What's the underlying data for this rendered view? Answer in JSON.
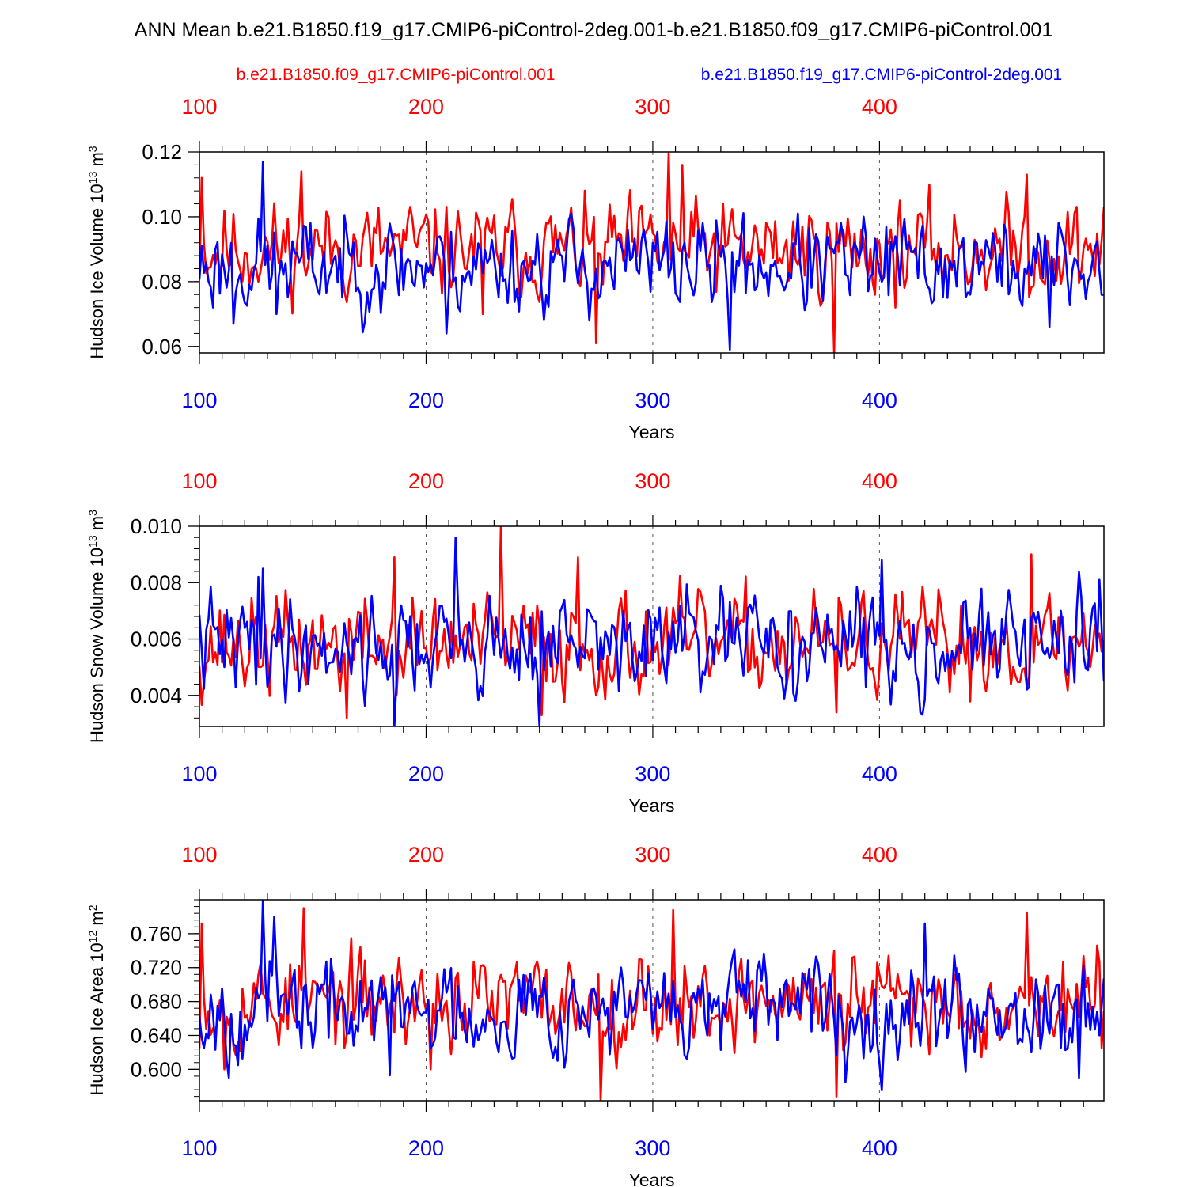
{
  "title": "ANN Mean b.e21.B1850.f19_g17.CMIP6-piControl-2deg.001-b.e21.B1850.f09_g17.CMIP6-piControl.001",
  "legend": {
    "red_label": "b.e21.B1850.f09_g17.CMIP6-piControl.001",
    "blue_label": "b.e21.B1850.f19_g17.CMIP6-piControl-2deg.001"
  },
  "colors": {
    "red": "#ff0000",
    "blue": "#0000ff",
    "axis": "#000000",
    "grid": "#555555"
  },
  "chart_data": [
    {
      "type": "line",
      "id": "ice_volume",
      "ylabel": "Hudson Ice Volume",
      "unit_base": "10",
      "unit_exp": "13",
      "unit_m": "m",
      "unit_m_exp": "3",
      "xlabel": "Years",
      "xlim": [
        100,
        499
      ],
      "ylim": [
        0.058,
        0.12
      ],
      "yticks": [
        0.06,
        0.08,
        0.1,
        0.12
      ],
      "ytick_labels": [
        "0.06",
        "0.08",
        "0.10",
        "0.12"
      ],
      "xticks": [
        100,
        200,
        300,
        400
      ],
      "xtick_labels": [
        "100",
        "200",
        "300",
        "400"
      ],
      "grid_x": [
        200,
        300,
        400
      ],
      "series": [
        {
          "name": "b.e21.B1850.f09_g17.CMIP6-piControl.001",
          "color": "red",
          "mean": 0.09,
          "amp": 0.009,
          "seed": 11,
          "peaks": [
            [
              101,
              0.112
            ],
            [
              145,
              0.114
            ],
            [
              307,
              0.12
            ],
            [
              313,
              0.116
            ],
            [
              275,
              0.061
            ],
            [
              380,
              0.058
            ],
            [
              465,
              0.113
            ],
            [
              225,
              0.07
            ]
          ]
        },
        {
          "name": "b.e21.B1850.f19_g17.CMIP6-piControl-2deg.001",
          "color": "blue",
          "mean": 0.085,
          "amp": 0.009,
          "seed": 23,
          "peaks": [
            [
              128,
              0.117
            ],
            [
              134,
              0.07
            ],
            [
              115,
              0.067
            ],
            [
              334,
              0.059
            ],
            [
              209,
              0.064
            ],
            [
              475,
              0.066
            ]
          ]
        }
      ]
    },
    {
      "type": "line",
      "id": "snow_volume",
      "ylabel": "Hudson Snow Volume",
      "unit_base": "10",
      "unit_exp": "13",
      "unit_m": "m",
      "unit_m_exp": "3",
      "xlabel": "Years",
      "xlim": [
        100,
        499
      ],
      "ylim": [
        0.0029,
        0.01
      ],
      "yticks": [
        0.004,
        0.006,
        0.008,
        0.01
      ],
      "ytick_labels": [
        "0.004",
        "0.006",
        "0.008",
        "0.010"
      ],
      "xticks": [
        100,
        200,
        300,
        400
      ],
      "xtick_labels": [
        "100",
        "200",
        "300",
        "400"
      ],
      "grid_x": [
        200,
        300,
        400
      ],
      "series": [
        {
          "name": "b.e21.B1850.f09_g17.CMIP6-piControl.001",
          "color": "red",
          "mean": 0.0058,
          "amp": 0.0011,
          "seed": 37,
          "peaks": [
            [
              233,
              0.01
            ],
            [
              186,
              0.0089
            ],
            [
              267,
              0.0089
            ],
            [
              467,
              0.009
            ],
            [
              165,
              0.0032
            ],
            [
              251,
              0.0033
            ],
            [
              381,
              0.0034
            ]
          ]
        },
        {
          "name": "b.e21.B1850.f19_g17.CMIP6-piControl-2deg.001",
          "color": "blue",
          "mean": 0.0058,
          "amp": 0.0011,
          "seed": 41,
          "peaks": [
            [
              213,
              0.0096
            ],
            [
              126,
              0.0082
            ],
            [
              128,
              0.0085
            ],
            [
              186,
              0.0029
            ],
            [
              250,
              0.0029
            ],
            [
              401,
              0.0088
            ],
            [
              497,
              0.0081
            ]
          ]
        }
      ]
    },
    {
      "type": "line",
      "id": "ice_area",
      "ylabel": "Hudson Ice Area",
      "unit_base": "10",
      "unit_exp": "12",
      "unit_m": "m",
      "unit_m_exp": "2",
      "xlabel": "Years",
      "xlim": [
        100,
        499
      ],
      "ylim": [
        0.563,
        0.8
      ],
      "yticks": [
        0.6,
        0.64,
        0.68,
        0.72,
        0.76
      ],
      "ytick_labels": [
        "0.600",
        "0.640",
        "0.680",
        "0.720",
        "0.760"
      ],
      "xticks": [
        100,
        200,
        300,
        400
      ],
      "xtick_labels": [
        "100",
        "200",
        "300",
        "400"
      ],
      "grid_x": [
        200,
        300,
        400
      ],
      "series": [
        {
          "name": "b.e21.B1850.f09_g17.CMIP6-piControl.001",
          "color": "red",
          "mean": 0.68,
          "amp": 0.035,
          "seed": 53,
          "peaks": [
            [
              101,
              0.772
            ],
            [
              146,
              0.79
            ],
            [
              309,
              0.788
            ],
            [
              465,
              0.785
            ],
            [
              277,
              0.563
            ],
            [
              381,
              0.568
            ],
            [
              111,
              0.6
            ],
            [
              202,
              0.6
            ]
          ]
        },
        {
          "name": "b.e21.B1850.f19_g17.CMIP6-piControl-2deg.001",
          "color": "blue",
          "mean": 0.672,
          "amp": 0.035,
          "seed": 67,
          "peaks": [
            [
              128,
              0.8
            ],
            [
              133,
              0.78
            ],
            [
              113,
              0.59
            ],
            [
              184,
              0.593
            ],
            [
              385,
              0.585
            ],
            [
              488,
              0.59
            ],
            [
              420,
              0.772
            ]
          ]
        }
      ]
    }
  ]
}
